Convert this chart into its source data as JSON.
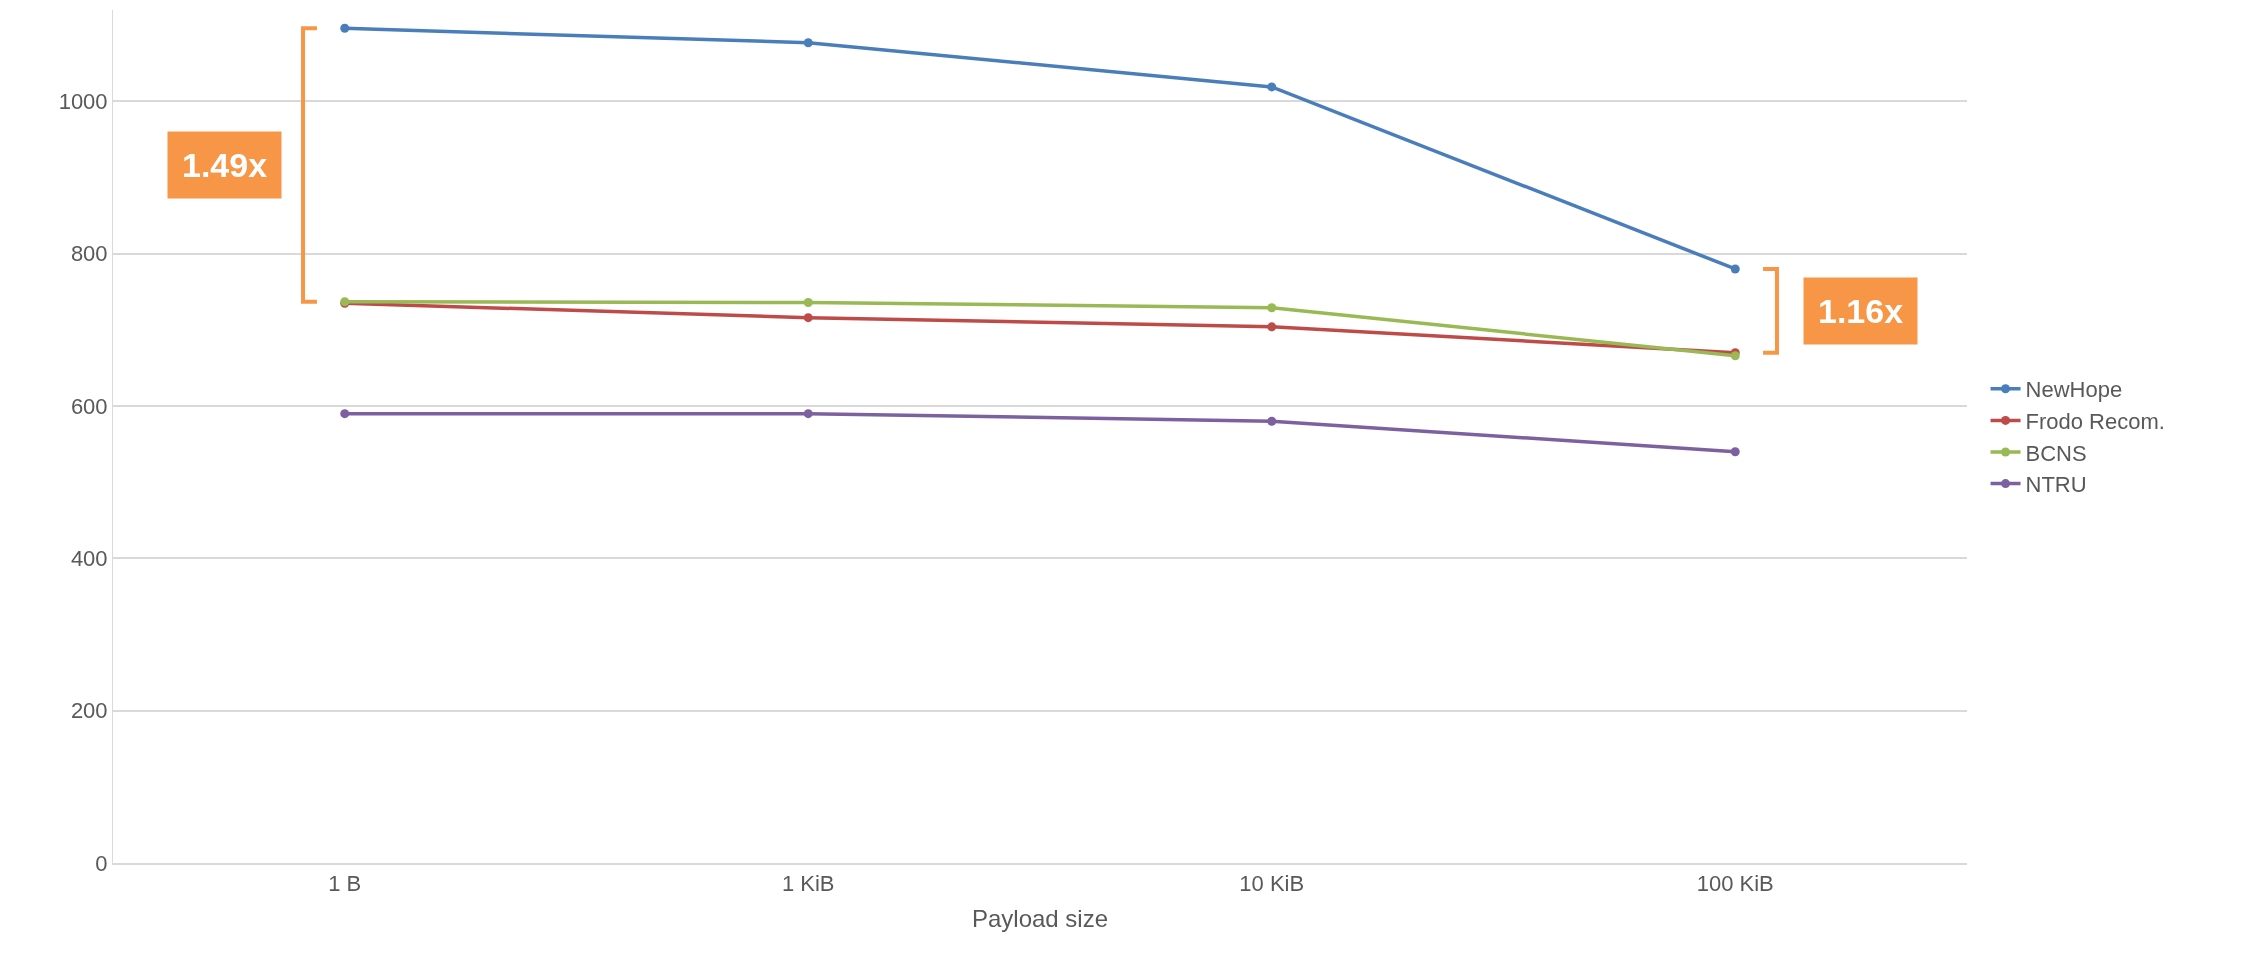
{
  "chart_data": {
    "type": "line",
    "xlabel": "Payload size",
    "categories": [
      "1 B",
      "1 KiB",
      "10 KiB",
      "100 KiB"
    ],
    "series": [
      {
        "name": "NewHope",
        "color": "#4a7ebb",
        "values": [
          1096,
          1077,
          1019,
          780
        ]
      },
      {
        "name": "Frodo Recom.",
        "color": "#be4b48",
        "values": [
          735,
          716,
          704,
          670
        ]
      },
      {
        "name": "BCNS",
        "color": "#98b954",
        "values": [
          737,
          736,
          729,
          666
        ]
      },
      {
        "name": "NTRU",
        "color": "#7d60a0",
        "values": [
          590,
          590,
          580,
          540
        ]
      }
    ],
    "ylim": [
      0,
      1120
    ],
    "yticks": [
      0,
      200,
      400,
      600,
      800,
      1000
    ],
    "grid": "y",
    "legend": "right",
    "marker": "circle",
    "line_style": "solid",
    "annotations": [
      "1.49x",
      "1.16x"
    ]
  }
}
